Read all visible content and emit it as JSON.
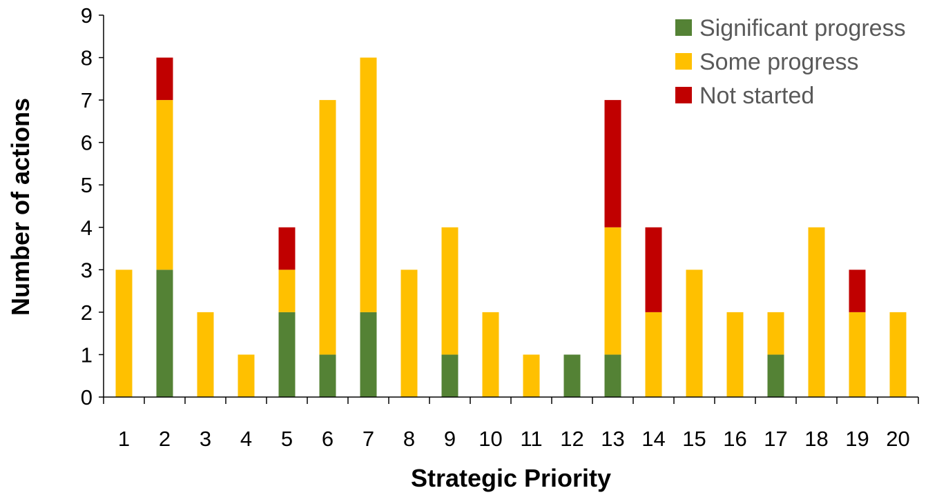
{
  "chart_data": {
    "type": "bar",
    "stacked": true,
    "categories": [
      "1",
      "2",
      "3",
      "4",
      "5",
      "6",
      "7",
      "8",
      "9",
      "10",
      "11",
      "12",
      "13",
      "14",
      "15",
      "16",
      "17",
      "18",
      "19",
      "20"
    ],
    "series": [
      {
        "name": "Significant progress",
        "color": "#548235",
        "values": [
          0,
          3,
          0,
          0,
          2,
          1,
          2,
          0,
          1,
          0,
          0,
          1,
          1,
          0,
          0,
          0,
          1,
          0,
          0,
          0
        ]
      },
      {
        "name": "Some progress",
        "color": "#FFC000",
        "values": [
          3,
          4,
          2,
          1,
          1,
          6,
          6,
          3,
          3,
          2,
          1,
          0,
          3,
          2,
          3,
          2,
          1,
          4,
          2,
          2
        ]
      },
      {
        "name": "Not started",
        "color": "#C00000",
        "values": [
          0,
          1,
          0,
          0,
          1,
          0,
          0,
          0,
          0,
          0,
          0,
          0,
          3,
          2,
          0,
          0,
          0,
          0,
          1,
          0
        ]
      }
    ],
    "xlabel": "Strategic Priority",
    "ylabel": "Number of actions",
    "ylim": [
      0,
      9
    ],
    "yticks": [
      "0",
      "1",
      "2",
      "3",
      "4",
      "5",
      "6",
      "7",
      "8",
      "9"
    ],
    "grid": false,
    "legend_position": "top-right"
  }
}
